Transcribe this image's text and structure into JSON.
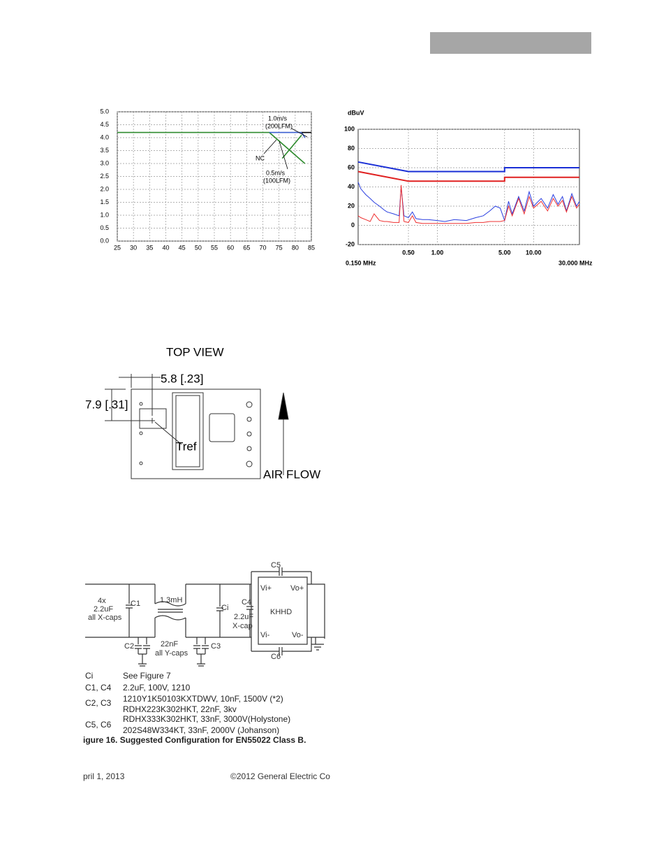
{
  "chart_data": [
    {
      "type": "line",
      "xlim": [
        25,
        85
      ],
      "xticks": [
        25,
        30,
        35,
        40,
        45,
        50,
        55,
        60,
        65,
        70,
        75,
        80,
        85
      ],
      "ylim": [
        0,
        5
      ],
      "yticks": [
        {
          "value": 0,
          "label": "0.0"
        },
        {
          "value": 0.5,
          "label": "0.5"
        },
        {
          "value": 1,
          "label": "1.0"
        },
        {
          "value": 1.5,
          "label": "1.5"
        },
        {
          "value": 2,
          "label": "2.0"
        },
        {
          "value": 2.5,
          "label": "2.5"
        },
        {
          "value": 3,
          "label": "3.0"
        },
        {
          "value": 3.5,
          "label": "3.5"
        },
        {
          "value": 4,
          "label": "4.0"
        },
        {
          "value": 4.5,
          "label": "4.5"
        },
        {
          "value": 5,
          "label": "5.0"
        }
      ],
      "grid": true,
      "series": [
        {
          "color": "#2e8b2e",
          "x": [
            25,
            72,
            83
          ],
          "values": [
            4.2,
            4.2,
            3.0
          ]
        },
        {
          "color": "#2e8b2e",
          "x": [
            76,
            82
          ],
          "values": [
            3.2,
            4.1
          ]
        },
        {
          "color": "#3a5fd0",
          "x": [
            72,
            82,
            83
          ],
          "values": [
            4.2,
            4.2,
            4.0
          ]
        },
        {
          "color": "#000000",
          "x": [
            82,
            85
          ],
          "values": [
            4.2,
            4.2
          ]
        }
      ],
      "annotations": [
        "1.0m/s",
        "(200LFM)",
        "NC",
        "0.5m/s",
        "(100LFM)"
      ]
    },
    {
      "type": "line",
      "xlog": true,
      "ylabel": "dBuV",
      "x_start_label": "0.150 MHz",
      "x_end_label": "30.000 MHz",
      "xlim": [
        0.15,
        30
      ],
      "xticks": [
        {
          "value": 0.5,
          "label": "0.50"
        },
        {
          "value": 1,
          "label": "1.00"
        },
        {
          "value": 5,
          "label": "5.00"
        },
        {
          "value": 10,
          "label": "10.00"
        }
      ],
      "ylim": [
        -20,
        100
      ],
      "yticks": [
        -20,
        0,
        20,
        40,
        60,
        80,
        100
      ],
      "grid": true,
      "series": [
        {
          "color": "#1a2fd6",
          "width": 2,
          "x": [
            0.15,
            0.5,
            5,
            5,
            30
          ],
          "values": [
            66,
            56,
            56,
            60,
            60
          ]
        },
        {
          "color": "#e02020",
          "width": 2,
          "x": [
            0.15,
            0.5,
            5,
            5,
            30
          ],
          "values": [
            56,
            46,
            46,
            50,
            50
          ]
        },
        {
          "color": "#2a3fe0",
          "width": 1,
          "x": [
            0.15,
            0.16,
            0.18,
            0.2,
            0.22,
            0.25,
            0.28,
            0.3,
            0.35,
            0.4,
            0.42,
            0.45,
            0.5,
            0.55,
            0.6,
            0.7,
            0.8,
            1,
            1.2,
            1.5,
            2,
            2.5,
            3,
            3.5,
            4,
            4.5,
            5,
            5.5,
            6,
            7,
            8,
            9,
            10,
            12,
            14,
            16,
            18,
            20,
            22,
            25,
            28,
            30
          ],
          "values": [
            45,
            38,
            32,
            28,
            24,
            20,
            16,
            14,
            12,
            10,
            40,
            10,
            8,
            14,
            7,
            6,
            6,
            5,
            4,
            6,
            5,
            8,
            10,
            15,
            20,
            18,
            5,
            25,
            12,
            30,
            15,
            35,
            20,
            28,
            18,
            32,
            22,
            30,
            15,
            33,
            20,
            25
          ]
        },
        {
          "color": "#ee3030",
          "width": 1,
          "x": [
            0.15,
            0.16,
            0.18,
            0.2,
            0.22,
            0.25,
            0.28,
            0.3,
            0.35,
            0.4,
            0.42,
            0.45,
            0.5,
            0.55,
            0.6,
            0.7,
            0.8,
            1,
            1.2,
            1.5,
            2,
            2.5,
            3,
            3.5,
            4,
            4.5,
            5,
            5.5,
            6,
            7,
            8,
            9,
            10,
            12,
            14,
            16,
            18,
            20,
            22,
            25,
            28,
            30
          ],
          "values": [
            10,
            8,
            6,
            4,
            12,
            5,
            4,
            4,
            3,
            3,
            42,
            4,
            3,
            10,
            3,
            2,
            2,
            2,
            2,
            2,
            2,
            3,
            3,
            4,
            4,
            4,
            5,
            20,
            10,
            28,
            12,
            30,
            18,
            25,
            15,
            28,
            20,
            26,
            14,
            30,
            18,
            22
          ]
        }
      ]
    }
  ],
  "top_view": {
    "title": "TOP VIEW",
    "dim_x": "5.8 [.23]",
    "dim_y": "7.9 [.31]",
    "ref": "Tref",
    "airflow": "AIR FLOW"
  },
  "schematic": {
    "labels": [
      "C5",
      "Vi+",
      "Vo+",
      "4x",
      "2.2uF",
      "all X-caps",
      "C1",
      "1.3mH",
      "Ci",
      "C4",
      "2.2uF",
      "X-cap",
      "KHHD",
      "Vi-",
      "Vo-",
      "C2",
      "C3",
      "22nF",
      "all Y-caps",
      "C6"
    ]
  },
  "table": {
    "rows": [
      [
        "Ci",
        "See Figure 7"
      ],
      [
        "C1, C4",
        "2.2uF, 100V, 1210"
      ],
      [
        "C2, C3",
        "1210Y1K50103KXTDWV, 10nF, 1500V  (*2)",
        "RDHX223K302HKT, 22nF, 3kv"
      ],
      [
        "C5, C6",
        "RDHX333K302HKT, 33nF, 3000V(Holystone)",
        "202S48W334KT, 33nF, 2000V (Johanson)"
      ]
    ]
  },
  "caption": "igure 16. Suggested Configuration for EN55022 Class B.",
  "footer": {
    "date": "pril 1, 2013",
    "copyright": "©2012 General Electric Co"
  }
}
